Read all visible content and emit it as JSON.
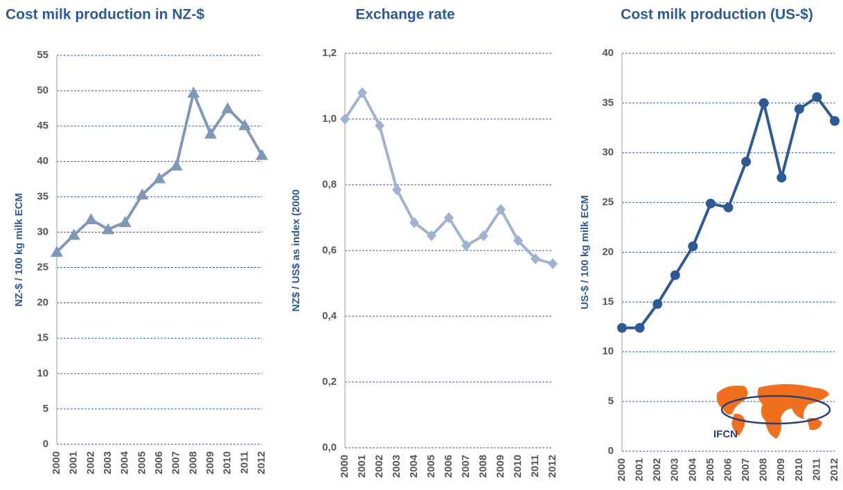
{
  "chart_data": [
    {
      "type": "line",
      "title": "Cost milk production in NZ-$",
      "y_label": "NZ-$ / 100 kg milk ECM",
      "categories": [
        "2000",
        "2001",
        "2002",
        "2003",
        "2004",
        "2005",
        "2006",
        "2007",
        "2008",
        "2009",
        "2010",
        "2011",
        "2012"
      ],
      "values": [
        27.2,
        29.6,
        31.8,
        30.4,
        31.4,
        35.3,
        37.6,
        39.4,
        49.7,
        43.9,
        47.5,
        45.1,
        40.9
      ],
      "color": "#7f97b8",
      "marker": "triangle",
      "ylim": [
        0,
        55
      ],
      "yticks": [
        0,
        5,
        10,
        15,
        20,
        25,
        30,
        35,
        40,
        45,
        50,
        55
      ],
      "grid": true
    },
    {
      "type": "line",
      "title": "Exchange rate",
      "y_label": "NZ$ / US$ as index (2000",
      "categories": [
        "2000",
        "2001",
        "2002",
        "2003",
        "2004",
        "2005",
        "2006",
        "2007",
        "2008",
        "2009",
        "2010",
        "2011",
        "2012"
      ],
      "values": [
        1.0,
        1.08,
        0.98,
        0.785,
        0.685,
        0.645,
        0.7,
        0.615,
        0.645,
        0.725,
        0.63,
        0.575,
        0.56
      ],
      "color": "#9fb3d1",
      "marker": "diamond",
      "ylim": [
        0,
        1.2
      ],
      "yticks": [
        {
          "value": 0,
          "label": "0,0"
        },
        {
          "value": 0.2,
          "label": "0,2"
        },
        {
          "value": 0.4,
          "label": "0,4"
        },
        {
          "value": 0.6,
          "label": "0,6"
        },
        {
          "value": 0.8,
          "label": "0,8"
        },
        {
          "value": 1.0,
          "label": "1,0"
        },
        {
          "value": 1.2,
          "label": "1,2"
        }
      ],
      "grid": true
    },
    {
      "type": "line",
      "title": "Cost milk production (US-$)",
      "y_label": "US-$ / 100 kg milk ECM",
      "categories": [
        "2000",
        "2001",
        "2002",
        "2003",
        "2004",
        "2005",
        "2006",
        "2007",
        "2008",
        "2009",
        "2010",
        "2011",
        "2012"
      ],
      "values": [
        12.4,
        12.4,
        14.8,
        17.7,
        20.6,
        24.9,
        24.5,
        29.1,
        35.0,
        27.5,
        34.4,
        35.6,
        33.2
      ],
      "color": "#2e5a93",
      "marker": "circle",
      "ylim": [
        0,
        40
      ],
      "yticks": [
        0,
        5,
        10,
        15,
        20,
        25,
        30,
        35,
        40
      ],
      "grid": true
    }
  ],
  "logo": {
    "text": "IFCN"
  }
}
